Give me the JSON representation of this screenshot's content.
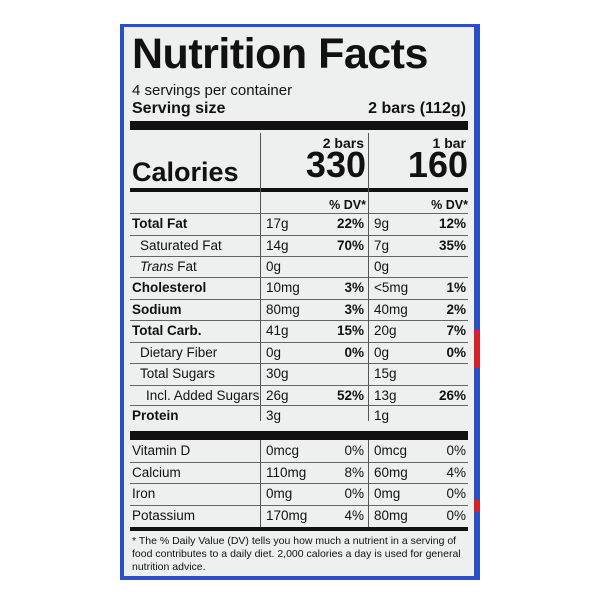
{
  "label": {
    "title": "Nutrition Facts",
    "servings": "4 servings per container",
    "serving_size_label": "Serving size",
    "serving_size_value": "2 bars (112g)",
    "calories_label": "Calories",
    "col1_header": "2 bars",
    "col2_header": "1 bar",
    "col1_calories": "330",
    "col2_calories": "160",
    "dv_header": "% DV*",
    "rows": [
      {
        "name": "Total Fat",
        "bold": true,
        "a1": "17g",
        "d1": "22%",
        "a2": "9g",
        "d2": "12%"
      },
      {
        "name": "Saturated Fat",
        "bold": false,
        "a1": "14g",
        "d1": "70%",
        "a2": "7g",
        "d2": "35%"
      },
      {
        "name": "Trans Fat",
        "bold": false,
        "a1": "0g",
        "d1": "",
        "a2": "0g",
        "d2": ""
      },
      {
        "name": "Cholesterol",
        "bold": true,
        "a1": "10mg",
        "d1": "3%",
        "a2": "<5mg",
        "d2": "1%"
      },
      {
        "name": "Sodium",
        "bold": true,
        "a1": "80mg",
        "d1": "3%",
        "a2": "40mg",
        "d2": "2%"
      },
      {
        "name": "Total Carb.",
        "bold": true,
        "a1": "41g",
        "d1": "15%",
        "a2": "20g",
        "d2": "7%"
      },
      {
        "name": "Dietary Fiber",
        "bold": false,
        "a1": "0g",
        "d1": "0%",
        "a2": "0g",
        "d2": "0%"
      },
      {
        "name": "Total Sugars",
        "bold": false,
        "a1": "30g",
        "d1": "",
        "a2": "15g",
        "d2": ""
      },
      {
        "name": "Incl. Added Sugars",
        "bold": false,
        "a1": "26g",
        "d1": "52%",
        "a2": "13g",
        "d2": "26%"
      },
      {
        "name": "Protein",
        "bold": true,
        "a1": "3g",
        "d1": "",
        "a2": "1g",
        "d2": ""
      }
    ],
    "vitamins": [
      {
        "name": "Vitamin D",
        "a1": "0mcg",
        "d1": "0%",
        "a2": "0mcg",
        "d2": "0%"
      },
      {
        "name": "Calcium",
        "a1": "110mg",
        "d1": "8%",
        "a2": "60mg",
        "d2": "4%"
      },
      {
        "name": "Iron",
        "a1": "0mg",
        "d1": "0%",
        "a2": "0mg",
        "d2": "0%"
      },
      {
        "name": "Potassium",
        "a1": "170mg",
        "d1": "4%",
        "a2": "80mg",
        "d2": "0%"
      }
    ],
    "footnote": "* The % Daily Value (DV) tells you how much a nutrient in a serving of food contributes to a daily diet. 2,000 calories a day is used for general nutrition advice."
  },
  "colors": {
    "frame": "#2b4fc4",
    "accent_red": "#d2232a",
    "panel": "#eef0ef",
    "ink": "#111111"
  }
}
